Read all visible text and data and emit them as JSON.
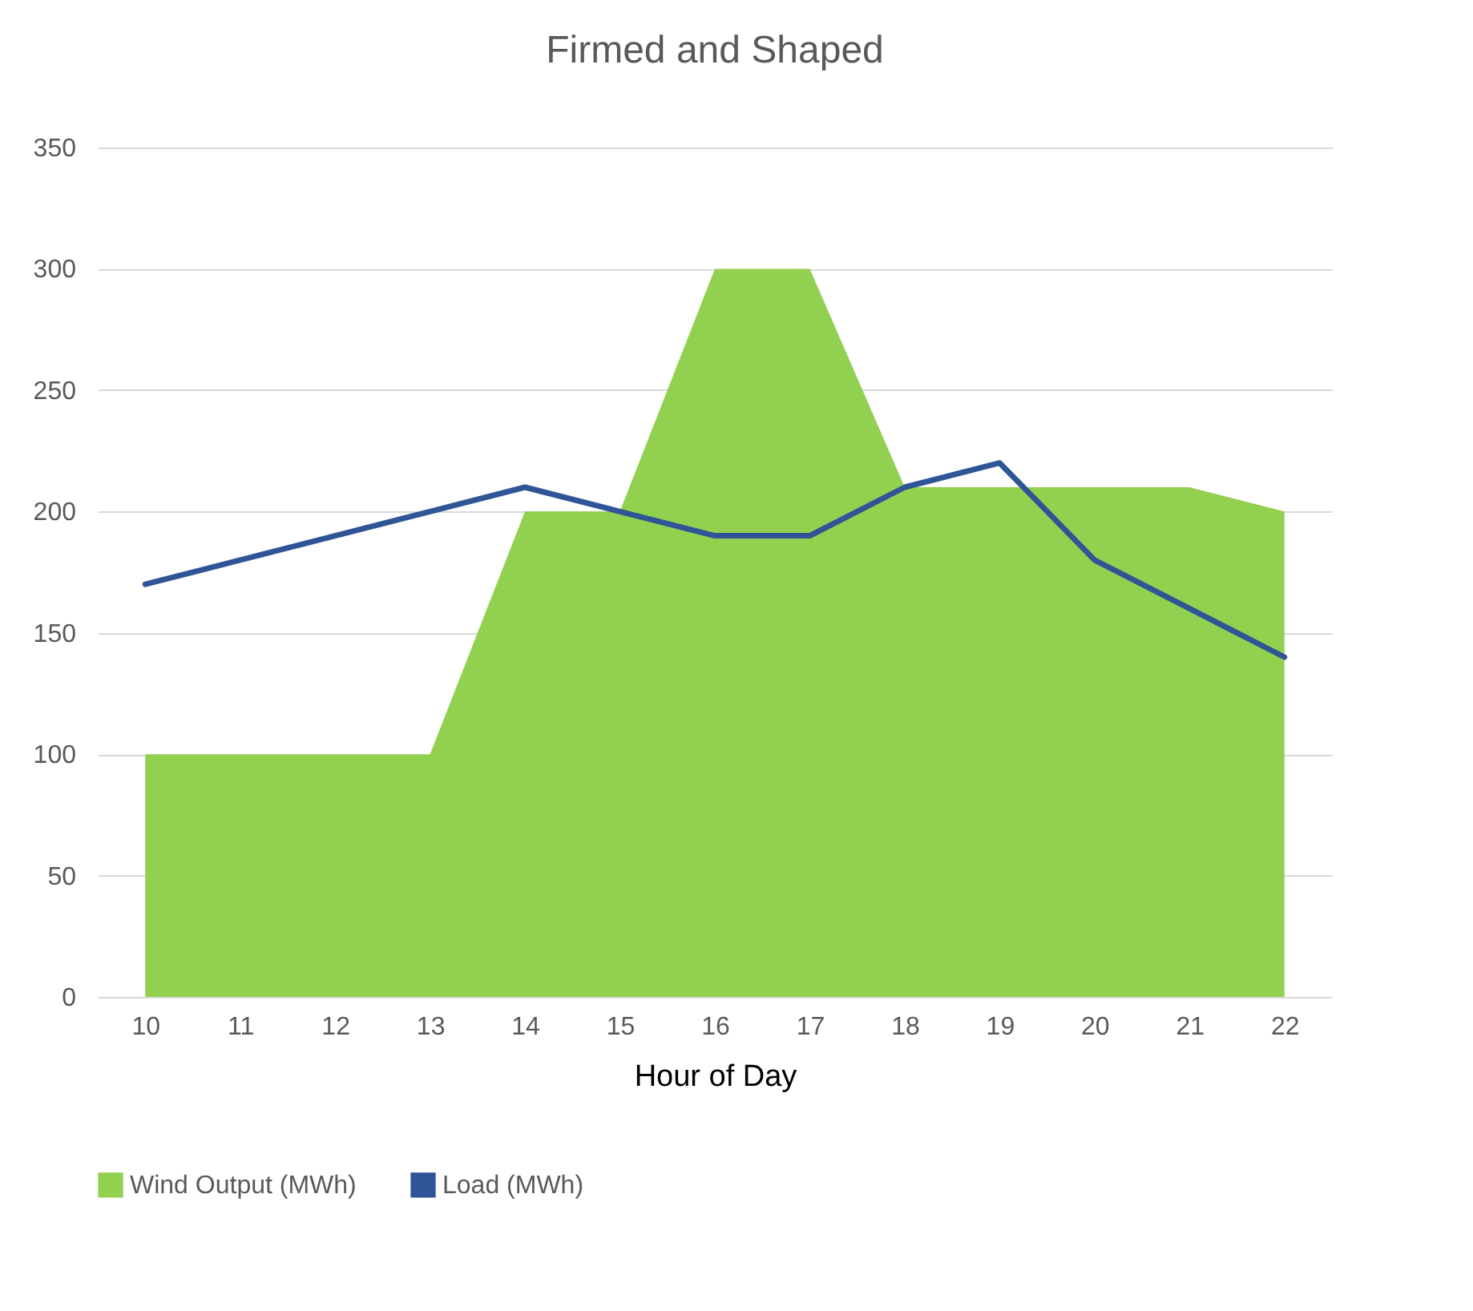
{
  "chart_data": {
    "type": "area",
    "title": "Firmed and Shaped",
    "xlabel": "Hour of Day",
    "categories": [
      "10",
      "11",
      "12",
      "13",
      "14",
      "15",
      "16",
      "17",
      "18",
      "19",
      "20",
      "21",
      "22"
    ],
    "series": [
      {
        "name": "Wind Output (MWh)",
        "color": "#92d050",
        "values": [
          100,
          100,
          100,
          100,
          200,
          200,
          300,
          300,
          210,
          210,
          210,
          210,
          200
        ]
      },
      {
        "name": "Load (MWh)",
        "color": "#2f5597",
        "type": "line",
        "values": [
          170,
          180,
          190,
          200,
          210,
          200,
          190,
          190,
          210,
          220,
          180,
          160,
          140
        ]
      }
    ],
    "ylim": [
      0,
      350
    ],
    "yticks": [
      0,
      50,
      100,
      150,
      200,
      250,
      300,
      350
    ],
    "grid": "y",
    "legend": "bottom"
  }
}
